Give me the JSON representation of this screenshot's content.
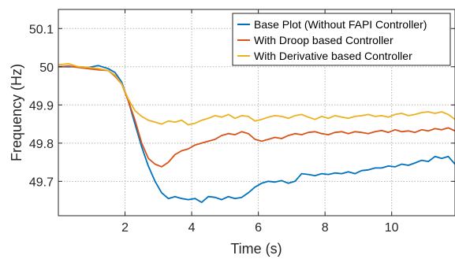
{
  "chart_data": {
    "type": "line",
    "xlabel": "Time (s)",
    "ylabel": "Frequency (Hz)",
    "xlim": [
      0,
      11.9
    ],
    "ylim": [
      49.61,
      50.15
    ],
    "xticks": [
      2,
      4,
      6,
      8,
      10
    ],
    "xtick_labels": [
      "2",
      "4",
      "6",
      "8",
      "10"
    ],
    "yticks": [
      49.7,
      49.8,
      49.9,
      50,
      50.1
    ],
    "ytick_labels": [
      "49.7",
      "49.8",
      "49.9",
      "50",
      "50.1"
    ],
    "grid": true,
    "legend_position": "top-right",
    "series": [
      {
        "name": "Base Plot (Without FAPI Controller)",
        "color": "#0072BD",
        "x": [
          0,
          0.3,
          0.6,
          0.9,
          1.2,
          1.5,
          1.7,
          1.9,
          2.1,
          2.3,
          2.5,
          2.7,
          2.9,
          3.1,
          3.3,
          3.5,
          3.7,
          3.9,
          4.1,
          4.3,
          4.5,
          4.7,
          4.9,
          5.1,
          5.3,
          5.5,
          5.7,
          5.9,
          6.1,
          6.3,
          6.5,
          6.7,
          6.9,
          7.1,
          7.3,
          7.5,
          7.7,
          7.9,
          8.1,
          8.3,
          8.5,
          8.7,
          8.9,
          9.1,
          9.3,
          9.5,
          9.7,
          9.9,
          10.1,
          10.3,
          10.5,
          10.7,
          10.9,
          11.1,
          11.3,
          11.5,
          11.7,
          11.9
        ],
        "y": [
          50.0,
          50.0,
          50.0,
          49.998,
          50.003,
          49.995,
          49.985,
          49.96,
          49.91,
          49.85,
          49.79,
          49.74,
          49.7,
          49.67,
          49.655,
          49.66,
          49.655,
          49.652,
          49.655,
          49.645,
          49.66,
          49.658,
          49.652,
          49.66,
          49.655,
          49.658,
          49.67,
          49.685,
          49.695,
          49.7,
          49.698,
          49.702,
          49.695,
          49.7,
          49.72,
          49.718,
          49.715,
          49.72,
          49.718,
          49.722,
          49.72,
          49.725,
          49.72,
          49.728,
          49.73,
          49.735,
          49.735,
          49.74,
          49.738,
          49.745,
          49.742,
          49.748,
          49.755,
          49.752,
          49.765,
          49.76,
          49.765,
          49.745
        ]
      },
      {
        "name": "With Droop based Controller",
        "color": "#D95319",
        "x": [
          0,
          0.3,
          0.6,
          0.9,
          1.2,
          1.5,
          1.7,
          1.9,
          2.1,
          2.3,
          2.5,
          2.7,
          2.9,
          3.1,
          3.3,
          3.5,
          3.7,
          3.9,
          4.1,
          4.3,
          4.5,
          4.7,
          4.9,
          5.1,
          5.3,
          5.5,
          5.7,
          5.9,
          6.1,
          6.3,
          6.5,
          6.7,
          6.9,
          7.1,
          7.3,
          7.5,
          7.7,
          7.9,
          8.1,
          8.3,
          8.5,
          8.7,
          8.9,
          9.1,
          9.3,
          9.5,
          9.7,
          9.9,
          10.1,
          10.3,
          10.5,
          10.7,
          10.9,
          11.1,
          11.3,
          11.5,
          11.7,
          11.9
        ],
        "y": [
          50.0,
          50.002,
          49.998,
          49.995,
          49.992,
          49.99,
          49.975,
          49.955,
          49.91,
          49.86,
          49.8,
          49.76,
          49.745,
          49.738,
          49.75,
          49.77,
          49.78,
          49.785,
          49.795,
          49.8,
          49.805,
          49.81,
          49.82,
          49.825,
          49.822,
          49.83,
          49.825,
          49.81,
          49.805,
          49.81,
          49.815,
          49.812,
          49.82,
          49.825,
          49.822,
          49.828,
          49.83,
          49.825,
          49.822,
          49.828,
          49.83,
          49.825,
          49.83,
          49.828,
          49.825,
          49.83,
          49.833,
          49.828,
          49.835,
          49.83,
          49.832,
          49.828,
          49.835,
          49.832,
          49.838,
          49.835,
          49.84,
          49.832
        ]
      },
      {
        "name": "With Derivative based Controller",
        "color": "#EDB120",
        "x": [
          0,
          0.3,
          0.6,
          0.9,
          1.2,
          1.5,
          1.7,
          1.9,
          2.1,
          2.3,
          2.5,
          2.7,
          2.9,
          3.1,
          3.3,
          3.5,
          3.7,
          3.9,
          4.1,
          4.3,
          4.5,
          4.7,
          4.9,
          5.1,
          5.3,
          5.5,
          5.7,
          5.9,
          6.1,
          6.3,
          6.5,
          6.7,
          6.9,
          7.1,
          7.3,
          7.5,
          7.7,
          7.9,
          8.1,
          8.3,
          8.5,
          8.7,
          8.9,
          9.1,
          9.3,
          9.5,
          9.7,
          9.9,
          10.1,
          10.3,
          10.5,
          10.7,
          10.9,
          11.1,
          11.3,
          11.5,
          11.7,
          11.9
        ],
        "y": [
          50.005,
          50.008,
          50.0,
          49.998,
          49.995,
          49.99,
          49.978,
          49.955,
          49.915,
          49.885,
          49.87,
          49.86,
          49.855,
          49.85,
          49.858,
          49.855,
          49.86,
          49.848,
          49.852,
          49.86,
          49.865,
          49.872,
          49.868,
          49.875,
          49.865,
          49.872,
          49.87,
          49.858,
          49.862,
          49.868,
          49.872,
          49.87,
          49.865,
          49.872,
          49.875,
          49.868,
          49.862,
          49.87,
          49.865,
          49.872,
          49.868,
          49.865,
          49.87,
          49.872,
          49.875,
          49.87,
          49.872,
          49.868,
          49.875,
          49.878,
          49.872,
          49.875,
          49.88,
          49.882,
          49.878,
          49.882,
          49.875,
          49.862
        ]
      }
    ]
  }
}
